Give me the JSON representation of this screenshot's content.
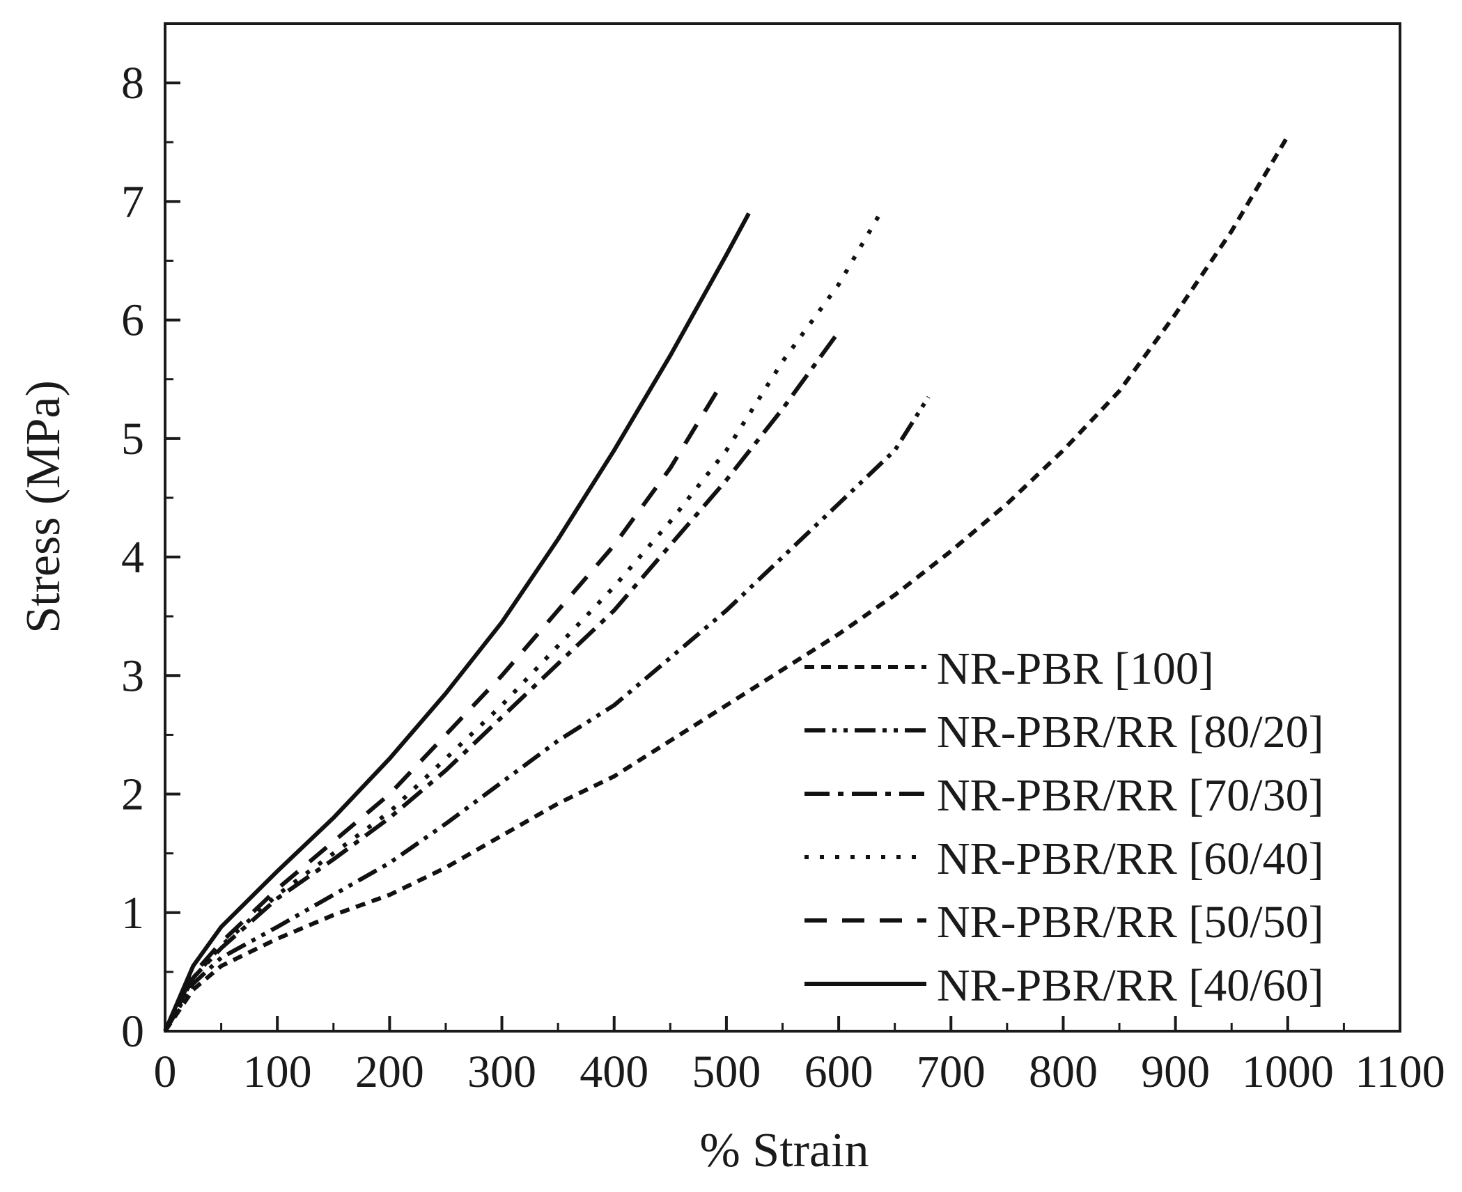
{
  "chart_data": {
    "type": "line",
    "xlabel": "% Strain",
    "ylabel": "Stress (MPa)",
    "xlim": [
      0,
      1100
    ],
    "ylim": [
      0,
      8.5
    ],
    "x_ticks": [
      0,
      100,
      200,
      300,
      400,
      500,
      600,
      700,
      800,
      900,
      1000,
      1100
    ],
    "y_ticks": [
      0,
      1,
      2,
      3,
      4,
      5,
      6,
      7,
      8
    ],
    "grid": false,
    "legend_position": "bottom-right",
    "series": [
      {
        "name": "NR-PBR [100]",
        "dash": "short-dash",
        "x": [
          0,
          25,
          50,
          100,
          150,
          200,
          250,
          300,
          350,
          400,
          450,
          500,
          550,
          600,
          650,
          700,
          750,
          800,
          850,
          900,
          950,
          1000
        ],
        "y": [
          0,
          0.35,
          0.55,
          0.78,
          0.98,
          1.15,
          1.38,
          1.65,
          1.92,
          2.15,
          2.45,
          2.75,
          3.05,
          3.35,
          3.68,
          4.05,
          4.45,
          4.9,
          5.4,
          6.05,
          6.75,
          7.55
        ]
      },
      {
        "name": "NR-PBR/RR [80/20]",
        "dash": "dash-dot-dot",
        "x": [
          0,
          25,
          50,
          100,
          150,
          200,
          250,
          300,
          350,
          400,
          450,
          500,
          550,
          600,
          650,
          680
        ],
        "y": [
          0,
          0.4,
          0.62,
          0.88,
          1.15,
          1.42,
          1.75,
          2.1,
          2.45,
          2.75,
          3.15,
          3.55,
          4.0,
          4.45,
          4.9,
          5.35
        ]
      },
      {
        "name": "NR-PBR/RR [70/30]",
        "dash": "dash-dot",
        "x": [
          0,
          25,
          50,
          100,
          150,
          200,
          250,
          300,
          350,
          400,
          450,
          500,
          550,
          600
        ],
        "y": [
          0,
          0.45,
          0.7,
          1.12,
          1.45,
          1.8,
          2.2,
          2.65,
          3.1,
          3.55,
          4.1,
          4.65,
          5.25,
          5.9
        ]
      },
      {
        "name": "NR-PBR/RR [60/40]",
        "dash": "dotted",
        "x": [
          0,
          25,
          50,
          100,
          150,
          200,
          250,
          300,
          350,
          400,
          450,
          500,
          550,
          600,
          640
        ],
        "y": [
          0,
          0.45,
          0.72,
          1.15,
          1.5,
          1.85,
          2.3,
          2.75,
          3.25,
          3.75,
          4.3,
          4.9,
          5.65,
          6.3,
          6.95
        ]
      },
      {
        "name": "NR-PBR/RR [50/50]",
        "dash": "long-dash",
        "x": [
          0,
          25,
          50,
          100,
          150,
          200,
          250,
          300,
          350,
          400,
          450,
          495
        ],
        "y": [
          0,
          0.48,
          0.75,
          1.2,
          1.6,
          2.0,
          2.5,
          3.0,
          3.55,
          4.1,
          4.75,
          5.45
        ]
      },
      {
        "name": "NR-PBR/RR [40/60]",
        "dash": "solid",
        "x": [
          0,
          25,
          50,
          100,
          150,
          200,
          250,
          300,
          350,
          400,
          450,
          500,
          520
        ],
        "y": [
          0,
          0.55,
          0.88,
          1.35,
          1.8,
          2.3,
          2.85,
          3.45,
          4.15,
          4.9,
          5.7,
          6.55,
          6.9
        ]
      }
    ]
  }
}
